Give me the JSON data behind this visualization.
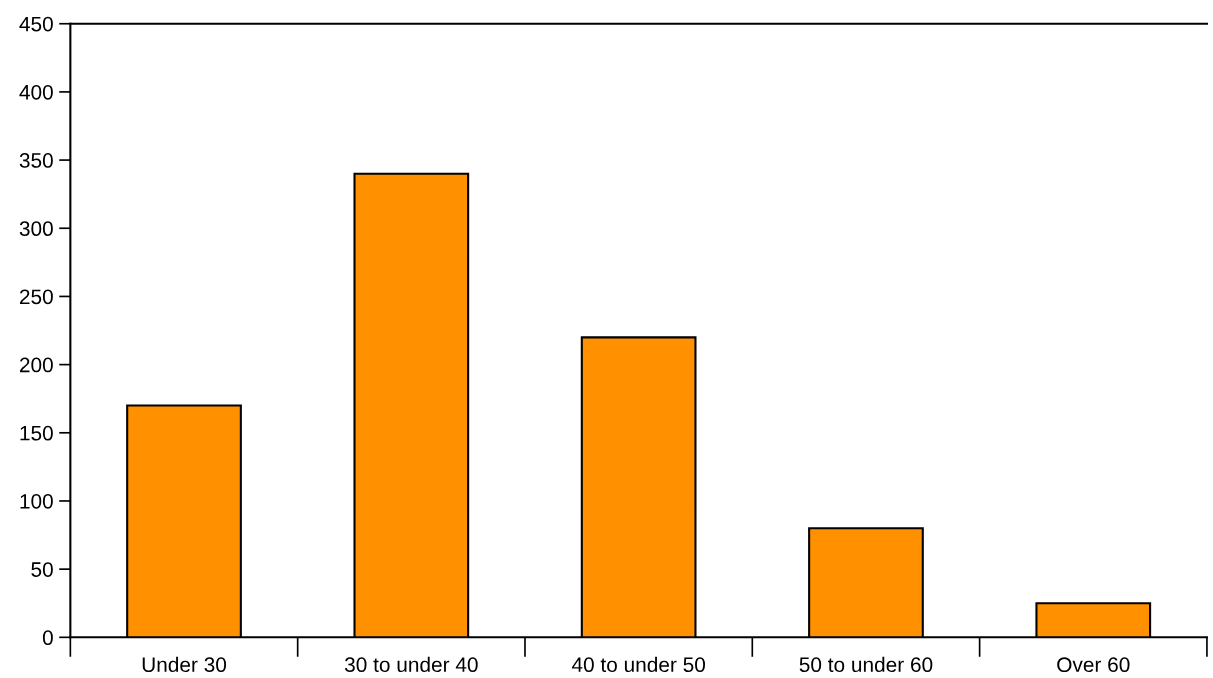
{
  "chart_data": {
    "type": "bar",
    "categories": [
      "Under 30",
      "30 to under 40",
      "40 to under 50",
      "50 to under 60",
      "Over 60"
    ],
    "values": [
      170,
      340,
      220,
      80,
      25
    ],
    "color": "#ff9000",
    "ylim": [
      0,
      450
    ],
    "yticks": [
      0,
      50,
      100,
      150,
      200,
      250,
      300,
      350,
      400,
      450
    ],
    "grid": false
  }
}
